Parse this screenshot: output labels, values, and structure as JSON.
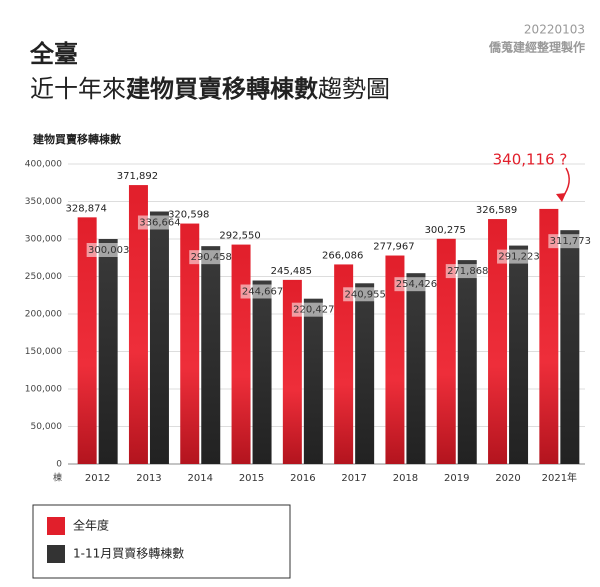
{
  "header": {
    "date": "20220103",
    "source": "僑蒐建經整理製作",
    "title_line1": "全臺",
    "title_pre": "近十年來",
    "title_bold": "建物買賣移轉棟數",
    "title_post": "趨勢圖"
  },
  "chart_data": {
    "type": "bar",
    "y_axis_title": "建物買賣移轉棟數",
    "y_unit": "棟",
    "categories": [
      "2012",
      "2013",
      "2014",
      "2015",
      "2016",
      "2017",
      "2018",
      "2019",
      "2020",
      "2021年"
    ],
    "series": [
      {
        "name": "全年度",
        "color": "#e11f2b",
        "values": [
          328874,
          371892,
          320598,
          292550,
          245485,
          266086,
          277967,
          300275,
          326589,
          340116
        ],
        "value_labels": [
          "328,874",
          "371,892",
          "320,598",
          "292,550",
          "245,485",
          "266,086",
          "277,967",
          "300,275",
          "326,589",
          "340,116 ?"
        ]
      },
      {
        "name": "1-11月買賣移轉棟數",
        "color": "#333333",
        "values": [
          300003,
          336664,
          290458,
          244667,
          220427,
          240955,
          254426,
          271868,
          291223,
          311773
        ],
        "value_labels": [
          "300,003",
          "336,664",
          "290,458",
          "244,667",
          "220,427",
          "240,955",
          "254,426",
          "271,868",
          "291,223",
          "311,773"
        ]
      }
    ],
    "ylim": [
      0,
      400000
    ],
    "yticks": [
      0,
      {
        "value": 50000,
        "label": "50,000"
      },
      {
        "value": 100000,
        "label": "100,000"
      },
      {
        "value": 150000,
        "label": "150,000"
      },
      {
        "value": 200000,
        "label": "200,000"
      },
      {
        "value": 250000,
        "label": "250,000"
      },
      {
        "value": 300000,
        "label": "300,000"
      },
      {
        "value": 350000,
        "label": "350,000"
      },
      {
        "value": 400000,
        "label": "400,000"
      }
    ],
    "grid": true
  }
}
